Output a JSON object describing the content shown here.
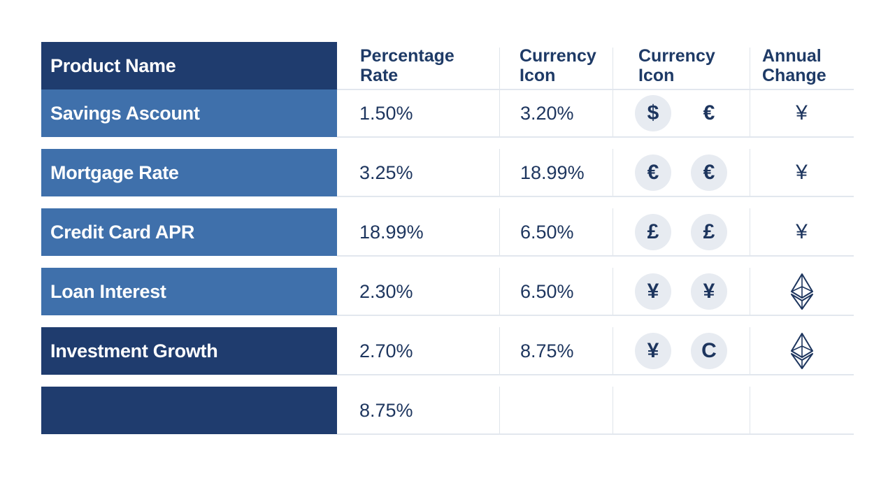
{
  "colors": {
    "header_dark": "#1f3c6e",
    "row_mid": "#3d6eaa",
    "text_navy": "#1d355e",
    "icon_bg": "#e7ebf1",
    "divider": "#e2e7ee"
  },
  "headers": {
    "product_name": "Product Name",
    "percentage_rate": [
      "Percentage",
      "Rate"
    ],
    "currency_icon_1": [
      "Currency",
      "Icon"
    ],
    "currency_icon_2": [
      "Currency",
      "Icon"
    ],
    "annual_change": [
      "Annual",
      "Change"
    ]
  },
  "rows": [
    {
      "name": "Savings Ascount",
      "rate": "1.50%",
      "currency_value": "3.20%",
      "icons": [
        {
          "glyph": "$",
          "circle": true
        },
        {
          "glyph": "€",
          "circle": false
        }
      ],
      "annual": {
        "glyph": "¥",
        "icon": "yen-icon"
      }
    },
    {
      "name": "Mortgage Rate",
      "rate": "3.25%",
      "currency_value": "18.99%",
      "icons": [
        {
          "glyph": "€",
          "circle": true
        },
        {
          "glyph": "€",
          "circle": true
        }
      ],
      "annual": {
        "glyph": "¥",
        "icon": "yen-icon"
      }
    },
    {
      "name": "Credit Card APR",
      "rate": "18.99%",
      "currency_value": "6.50%",
      "icons": [
        {
          "glyph": "£",
          "circle": true
        },
        {
          "glyph": "£",
          "circle": true
        }
      ],
      "annual": {
        "glyph": "¥",
        "icon": "yen-icon"
      }
    },
    {
      "name": "Loan Interest",
      "rate": "2.30%",
      "currency_value": "6.50%",
      "icons": [
        {
          "glyph": "¥",
          "circle": true
        },
        {
          "glyph": "¥",
          "circle": true
        }
      ],
      "annual": {
        "glyph": "",
        "icon": "ethereum-icon"
      }
    },
    {
      "name": "Investment Growth",
      "rate": "2.70%",
      "currency_value": "8.75%",
      "icons": [
        {
          "glyph": "¥",
          "circle": true
        },
        {
          "glyph": "C",
          "circle": true
        }
      ],
      "annual": {
        "glyph": "",
        "icon": "ethereum-icon"
      }
    },
    {
      "name": "",
      "rate": "8.75%",
      "currency_value": "",
      "icons": [],
      "annual": {
        "glyph": "",
        "icon": ""
      }
    }
  ]
}
